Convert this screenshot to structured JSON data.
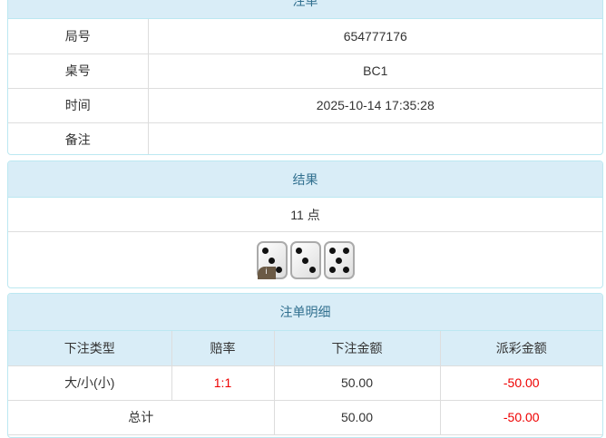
{
  "bet": {
    "title": "注单",
    "rows": [
      {
        "label": "局号",
        "value": "654777176"
      },
      {
        "label": "桌号",
        "value": "BC1"
      },
      {
        "label": "时间",
        "value": "2025-10-14 17:35:28"
      },
      {
        "label": "备注",
        "value": ""
      }
    ]
  },
  "result": {
    "title": "结果",
    "points": "11 点",
    "dice": [
      3,
      3,
      5
    ],
    "info_icon": "i"
  },
  "detail": {
    "title": "注单明细",
    "headers": [
      "下注类型",
      "赔率",
      "下注金额",
      "派彩金额"
    ],
    "rows": [
      {
        "type": "大/小(小)",
        "odds": "1:1",
        "amount": "50.00",
        "payout": "-50.00"
      }
    ],
    "total": {
      "label": "总计",
      "amount": "50.00",
      "payout": "-50.00"
    }
  },
  "colors": {
    "header_bg": "#d9edf7",
    "header_text": "#31708f",
    "negative": "#e00000"
  }
}
